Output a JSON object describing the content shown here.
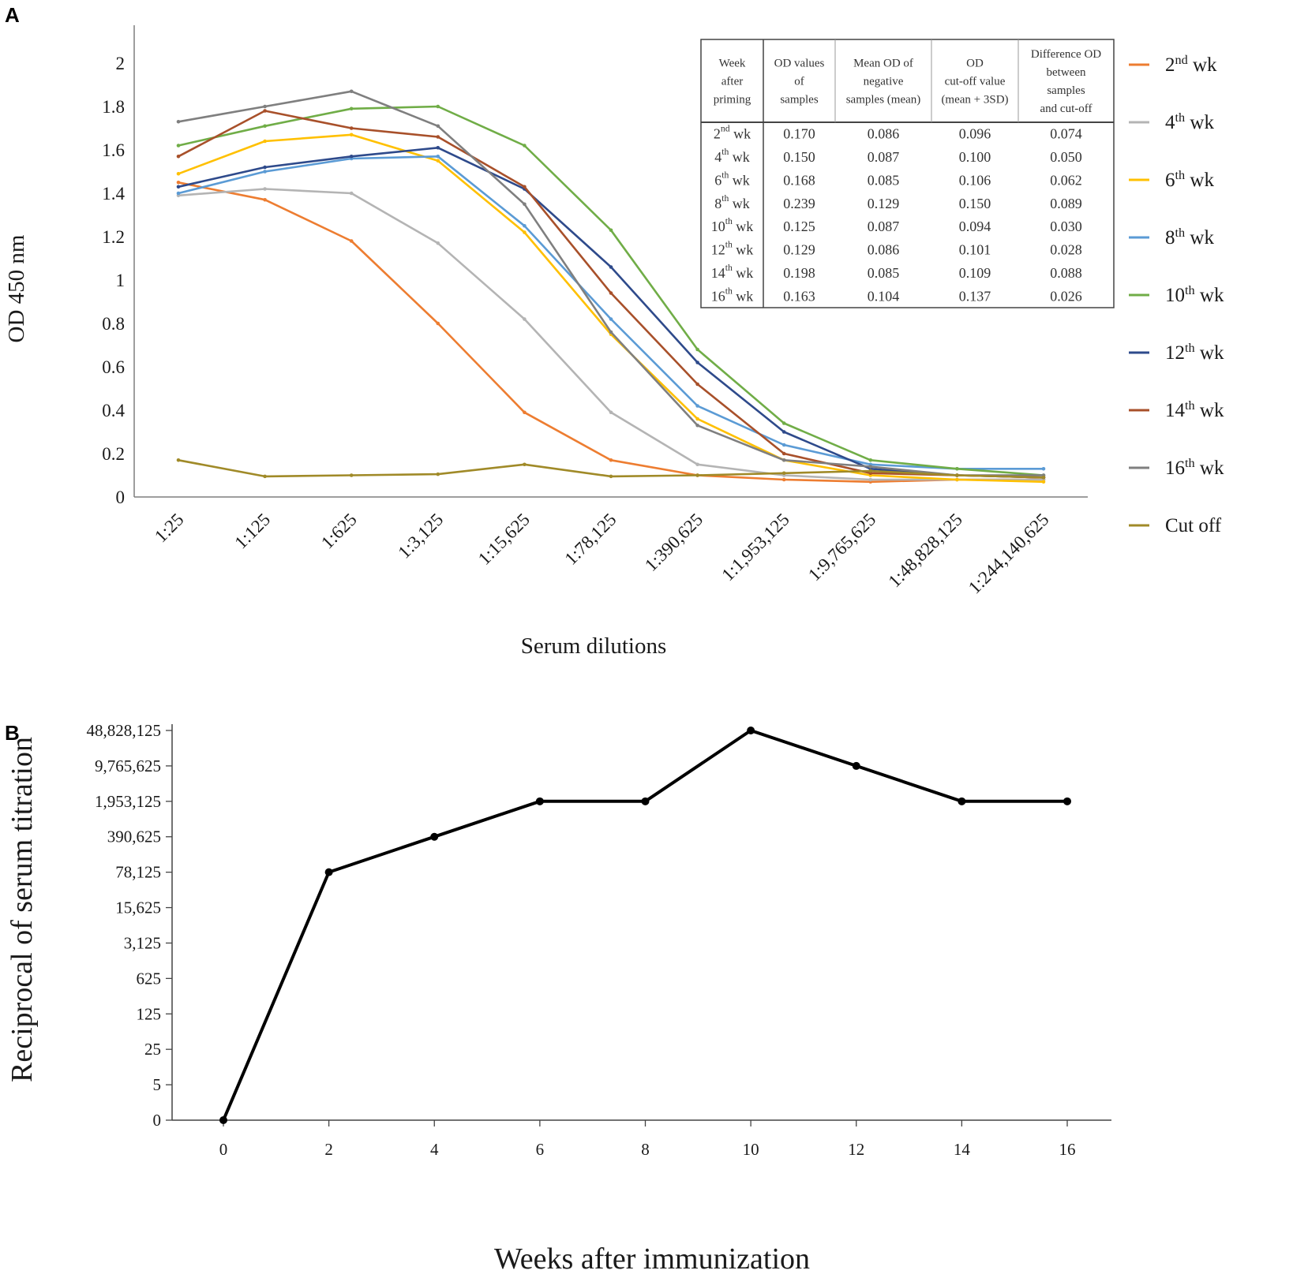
{
  "chart_data": [
    {
      "panel": "A",
      "type": "line",
      "xlabel": "Serum dilutions",
      "ylabel": "OD 450 nm",
      "ylim": [
        0,
        2.2
      ],
      "yticks": [
        "0",
        "0.2",
        "0.4",
        "0.6",
        "0.8",
        "1",
        "1.2",
        "1.4",
        "1.6",
        "1.8",
        "2"
      ],
      "categories": [
        "1:25",
        "1:125",
        "1:625",
        "1:3,125",
        "1:15,625",
        "1:78,125",
        "1:390,625",
        "1:1,953,125",
        "1:9,765,625",
        "1:48,828,125",
        "1:244,140,625"
      ],
      "series": [
        {
          "name": "2nd wk",
          "base": "2",
          "sup": "nd",
          "suffix": " wk",
          "color": "#ed7d31",
          "values": [
            1.45,
            1.37,
            1.18,
            0.8,
            0.39,
            0.17,
            0.1,
            0.08,
            0.07,
            0.08,
            0.08
          ]
        },
        {
          "name": "4th wk",
          "base": "4",
          "sup": "th",
          "suffix": " wk",
          "color": "#b4b4b4",
          "values": [
            1.39,
            1.42,
            1.4,
            1.17,
            0.82,
            0.39,
            0.15,
            0.1,
            0.08,
            0.08,
            0.08
          ]
        },
        {
          "name": "6th wk",
          "base": "6",
          "sup": "th",
          "suffix": " wk",
          "color": "#ffc000",
          "values": [
            1.49,
            1.64,
            1.67,
            1.55,
            1.22,
            0.75,
            0.36,
            0.17,
            0.1,
            0.08,
            0.07
          ]
        },
        {
          "name": "8th wk",
          "base": "8",
          "sup": "th",
          "suffix": " wk",
          "color": "#5b9bd5",
          "values": [
            1.4,
            1.5,
            1.56,
            1.57,
            1.25,
            0.82,
            0.42,
            0.24,
            0.15,
            0.13,
            0.13
          ]
        },
        {
          "name": "10th wk",
          "base": "10",
          "sup": "th",
          "suffix": " wk",
          "color": "#70ad47",
          "values": [
            1.62,
            1.71,
            1.79,
            1.8,
            1.62,
            1.23,
            0.68,
            0.34,
            0.17,
            0.13,
            0.1
          ]
        },
        {
          "name": "12th wk",
          "base": "12",
          "sup": "th",
          "suffix": " wk",
          "color": "#2e4a8b",
          "values": [
            1.43,
            1.52,
            1.57,
            1.61,
            1.42,
            1.06,
            0.62,
            0.3,
            0.13,
            0.1,
            0.09
          ]
        },
        {
          "name": "14th wk",
          "base": "14",
          "sup": "th",
          "suffix": " wk",
          "color": "#a8502a",
          "values": [
            1.57,
            1.78,
            1.7,
            1.66,
            1.43,
            0.94,
            0.52,
            0.2,
            0.11,
            0.1,
            0.09
          ]
        },
        {
          "name": "16th wk",
          "base": "16",
          "sup": "th",
          "suffix": " wk",
          "color": "#7f7f7f",
          "values": [
            1.73,
            1.8,
            1.87,
            1.71,
            1.35,
            0.76,
            0.33,
            0.17,
            0.14,
            0.1,
            0.1
          ]
        },
        {
          "name": "Cut off",
          "base": "Cut off",
          "sup": "",
          "suffix": "",
          "color": "#a08a28",
          "values": [
            0.17,
            0.095,
            0.1,
            0.105,
            0.15,
            0.095,
            0.1,
            0.11,
            0.12,
            0.1,
            0.09
          ]
        }
      ],
      "table": {
        "headers": [
          [
            "Week",
            "after",
            "priming"
          ],
          [
            "OD values",
            "of",
            "samples"
          ],
          [
            "Mean OD of",
            "negative",
            "samples (mean)"
          ],
          [
            "OD",
            "cut-off value",
            "(mean + 3SD)"
          ],
          [
            "Difference OD",
            "between",
            "samples",
            "and cut-off"
          ]
        ],
        "rows": [
          {
            "base": "2",
            "sup": "nd",
            "suffix": " wk",
            "cells": [
              "0.170",
              "0.086",
              "0.096",
              "0.074"
            ]
          },
          {
            "base": "4",
            "sup": "th",
            "suffix": " wk",
            "cells": [
              "0.150",
              "0.087",
              "0.100",
              "0.050"
            ]
          },
          {
            "base": "6",
            "sup": "th",
            "suffix": " wk",
            "cells": [
              "0.168",
              "0.085",
              "0.106",
              "0.062"
            ]
          },
          {
            "base": "8",
            "sup": "th",
            "suffix": " wk",
            "cells": [
              "0.239",
              "0.129",
              "0.150",
              "0.089"
            ]
          },
          {
            "base": "10",
            "sup": "th",
            "suffix": " wk",
            "cells": [
              "0.125",
              "0.087",
              "0.094",
              "0.030"
            ]
          },
          {
            "base": "12",
            "sup": "th",
            "suffix": " wk",
            "cells": [
              "0.129",
              "0.086",
              "0.101",
              "0.028"
            ]
          },
          {
            "base": "14",
            "sup": "th",
            "suffix": " wk",
            "cells": [
              "0.198",
              "0.085",
              "0.109",
              "0.088"
            ]
          },
          {
            "base": "16",
            "sup": "th",
            "suffix": " wk",
            "cells": [
              "0.163",
              "0.104",
              "0.137",
              "0.026"
            ]
          }
        ]
      }
    },
    {
      "panel": "B",
      "type": "line",
      "xlabel": "Weeks after immunization",
      "ylabel": "Reciprocal of serum titration",
      "yticks": [
        "0",
        "5",
        "25",
        "125",
        "625",
        "3,125",
        "15,625",
        "78,125",
        "390,625",
        "1,953,125",
        "9,765,625",
        "48,828,125"
      ],
      "x": [
        0,
        2,
        4,
        6,
        8,
        10,
        12,
        14,
        16
      ],
      "xticks": [
        "0",
        "2",
        "4",
        "6",
        "8",
        "10",
        "12",
        "14",
        "16"
      ],
      "xlim": [
        -1,
        17
      ],
      "values_tick_index": [
        0,
        7,
        8,
        9,
        9,
        11,
        10,
        9,
        9
      ],
      "values": [
        0,
        78125,
        390625,
        1953125,
        1953125,
        48828125,
        9765625,
        1953125,
        1953125
      ],
      "color": "#000000"
    }
  ]
}
